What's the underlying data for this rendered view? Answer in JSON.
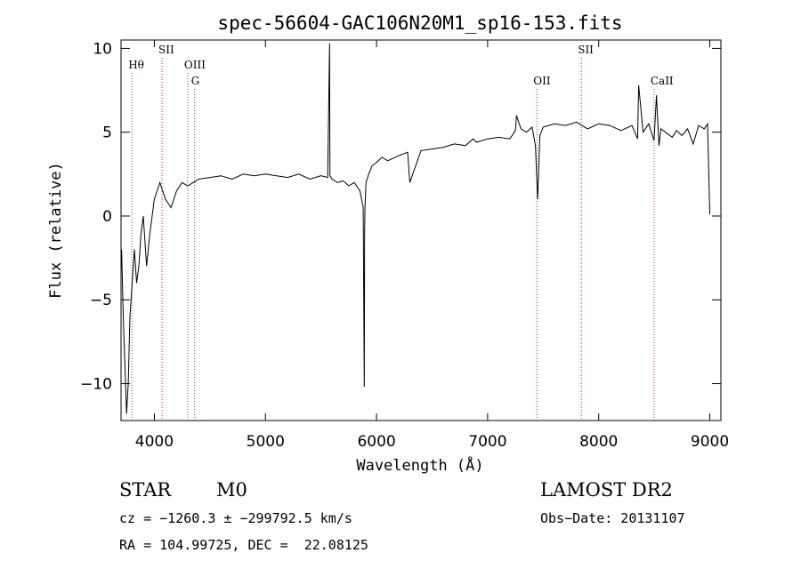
{
  "chart_data": {
    "type": "line",
    "title": "spec-56604-GAC106N20M1_sp16-153.fits",
    "xlabel": "Wavelength (Å)",
    "ylabel": "Flux (relative)",
    "xlim": [
      3700,
      9100
    ],
    "ylim": [
      -12.2,
      10.5
    ],
    "xticks": [
      4000,
      5000,
      6000,
      7000,
      8000,
      9000
    ],
    "yticks": [
      -10,
      -5,
      0,
      5,
      10
    ],
    "grid": false,
    "series": [
      {
        "x": [
          3705,
          3720,
          3735,
          3750,
          3765,
          3780,
          3800,
          3820,
          3840,
          3860,
          3880,
          3900,
          3930,
          3960,
          4000,
          4050,
          4100,
          4150,
          4200,
          4250,
          4300,
          4350,
          4400,
          4500,
          4600,
          4700,
          4800,
          4900,
          5000,
          5100,
          5200,
          5300,
          5400,
          5500,
          5560,
          5577,
          5580,
          5600,
          5650,
          5700,
          5750,
          5800,
          5850,
          5880,
          5890,
          5893,
          5896,
          5905,
          5930,
          5960,
          6000,
          6050,
          6100,
          6200,
          6280,
          6300,
          6400,
          6500,
          6600,
          6700,
          6800,
          6870,
          6900,
          7000,
          7100,
          7200,
          7250,
          7260,
          7300,
          7350,
          7400,
          7430,
          7450,
          7470,
          7500,
          7600,
          7700,
          7800,
          7900,
          8000,
          8100,
          8200,
          8300,
          8350,
          8360,
          8400,
          8450,
          8498,
          8520,
          8542,
          8560,
          8600,
          8662,
          8700,
          8750,
          8800,
          8850,
          8900,
          8950,
          8980,
          9000
        ],
        "y": [
          -2,
          -6,
          -9,
          -11.8,
          -10,
          -6,
          -4,
          -2,
          -4,
          -3,
          -1,
          0,
          -3,
          -1,
          1,
          2,
          1,
          0.5,
          1.5,
          2,
          1.8,
          2,
          2.2,
          2.3,
          2.4,
          2.2,
          2.5,
          2.4,
          2.5,
          2.4,
          2.3,
          2.5,
          2.2,
          2.4,
          2.3,
          10.3,
          2.4,
          2.2,
          2.0,
          2.1,
          1.8,
          2.0,
          1.5,
          0.5,
          -10.2,
          -1,
          0.5,
          2.0,
          2.5,
          3.0,
          3.2,
          3.5,
          3.3,
          3.6,
          3.8,
          2.0,
          3.9,
          4.0,
          4.1,
          4.3,
          4.2,
          4.6,
          4.4,
          4.6,
          4.7,
          4.6,
          5.1,
          6.0,
          5.2,
          5.0,
          5.3,
          4.2,
          1.0,
          4.8,
          5.3,
          5.5,
          5.4,
          5.6,
          5.2,
          5.5,
          5.4,
          5.1,
          5.4,
          4.6,
          7.8,
          5.0,
          5.5,
          4.5,
          7.2,
          4.2,
          5.2,
          5.0,
          4.7,
          5.1,
          4.8,
          5.2,
          4.3,
          5.4,
          5.2,
          5.5,
          0.1
        ]
      }
    ],
    "lines": [
      {
        "label": "Hθ",
        "x": 3798,
        "row": 1
      },
      {
        "label": "SII",
        "x": 4069,
        "row": 0
      },
      {
        "label": "OIII",
        "x": 4300,
        "row": 1
      },
      {
        "label": "G",
        "x": 4363,
        "row": 2
      },
      {
        "label": "OII",
        "x": 7444,
        "row": 2
      },
      {
        "label": "SII",
        "x": 7844,
        "row": 0
      },
      {
        "label": "CaII",
        "x": 8498,
        "row": 2
      }
    ]
  },
  "info": {
    "class": "STAR",
    "subclass": "M0",
    "survey": "LAMOST DR2",
    "cz": "cz = −1260.3 ± −299792.5 km/s",
    "obsdate": "Obs−Date: 20131107",
    "radec": "RA = 104.99725, DEC =  22.08125"
  }
}
